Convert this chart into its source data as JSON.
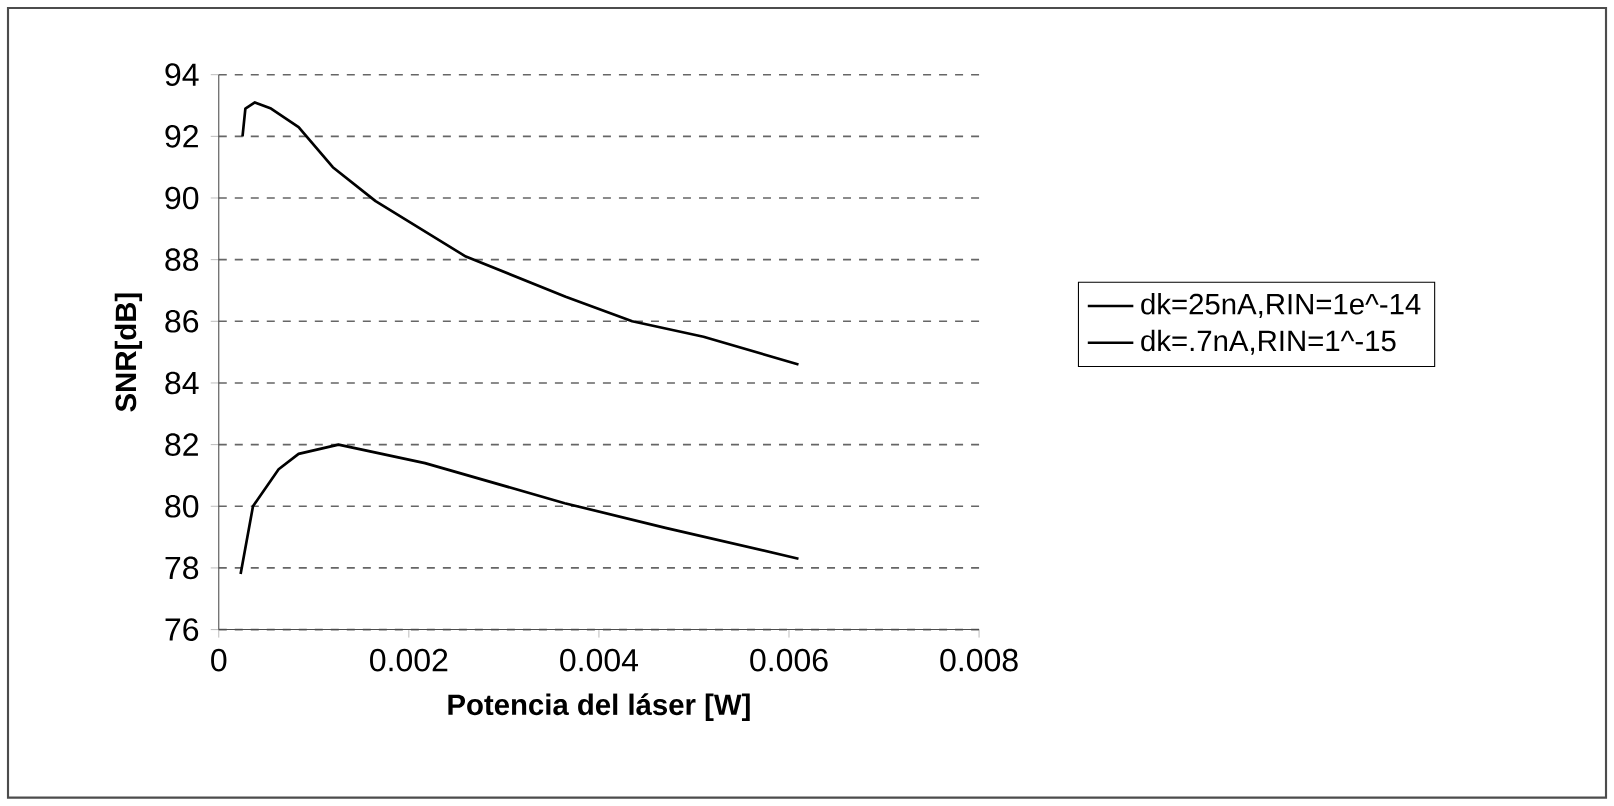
{
  "chart_data": {
    "type": "line",
    "xlabel": "Potencia del láser [W]",
    "ylabel": "SNR[dB]",
    "xlim": [
      0,
      0.008
    ],
    "xticks": [
      0,
      0.002,
      0.004,
      0.006,
      0.008
    ],
    "ylim": [
      76,
      94
    ],
    "yticks": [
      76,
      78,
      80,
      82,
      84,
      86,
      88,
      90,
      92,
      94
    ],
    "grid": "y",
    "legend": "right",
    "line_style": "solid",
    "series": [
      {
        "name": "dk=25nA,RIN=1e^-14",
        "color": "#000000",
        "x": [
          0.00025,
          0.00028,
          0.00038,
          0.00055,
          0.00084,
          0.0012,
          0.00165,
          0.0026,
          0.00365,
          0.00435,
          0.0051,
          0.0061
        ],
        "values": [
          92.0,
          92.9,
          93.1,
          92.9,
          92.3,
          91.0,
          89.9,
          88.1,
          86.8,
          86.0,
          85.5,
          84.6
        ]
      },
      {
        "name": "dk=.7nA,RIN=1^-15",
        "color": "#000000",
        "x": [
          0.00023,
          0.00036,
          0.00063,
          0.00084,
          0.00126,
          0.00217,
          0.00364,
          0.0047,
          0.0061
        ],
        "values": [
          77.8,
          80.0,
          81.2,
          81.7,
          82.0,
          81.4,
          80.1,
          79.3,
          78.3
        ]
      }
    ]
  }
}
